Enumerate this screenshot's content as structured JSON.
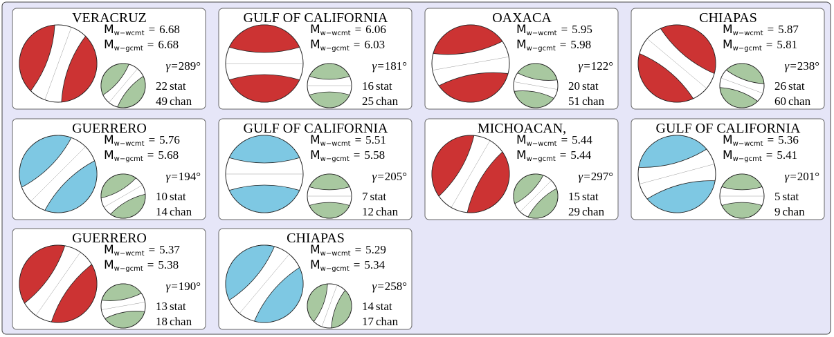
{
  "labels": {
    "m": "M",
    "wcmt": "w−wcmt",
    "gcmt": "w−gcmt",
    "eq": "=",
    "gamma": "γ=",
    "stat": "stat",
    "chan": "chan"
  },
  "panels": [
    {
      "title": "VERACRUZ",
      "wcmt": "6.68",
      "gcmt": "6.68",
      "gamma": "289°",
      "stat": "22",
      "chan": "49",
      "color": "#cc3333"
    },
    {
      "title": "GULF OF CALIFORNIA",
      "wcmt": "6.06",
      "gcmt": "6.03",
      "gamma": "181°",
      "stat": "16",
      "chan": "25",
      "color": "#cc3333"
    },
    {
      "title": "OAXACA",
      "wcmt": "5.95",
      "gcmt": "5.98",
      "gamma": "122°",
      "stat": "20",
      "chan": "51",
      "color": "#cc3333"
    },
    {
      "title": "CHIAPAS",
      "wcmt": "5.87",
      "gcmt": "5.81",
      "gamma": "238°",
      "stat": "26",
      "chan": "60",
      "color": "#cc3333"
    },
    {
      "title": "GUERRERO",
      "wcmt": "5.76",
      "gcmt": "5.68",
      "gamma": "194°",
      "stat": "10",
      "chan": "14",
      "color": "#7ec8e3"
    },
    {
      "title": "GULF OF CALIFORNIA",
      "wcmt": "5.51",
      "gcmt": "5.58",
      "gamma": "205°",
      "stat": "7",
      "chan": "12",
      "color": "#7ec8e3"
    },
    {
      "title": "MICHOACAN,",
      "wcmt": "5.44",
      "gcmt": "5.44",
      "gamma": "297°",
      "stat": "15",
      "chan": "29",
      "color": "#cc3333"
    },
    {
      "title": "GULF OF CALIFORNIA",
      "wcmt": "5.36",
      "gcmt": "5.41",
      "gamma": "201°",
      "stat": "5",
      "chan": "9",
      "color": "#7ec8e3"
    },
    {
      "title": "GUERRERO",
      "wcmt": "5.37",
      "gcmt": "5.38",
      "gamma": "190°",
      "stat": "13",
      "chan": "18",
      "color": "#cc3333"
    },
    {
      "title": "CHIAPAS",
      "wcmt": "5.29",
      "gcmt": "5.34",
      "gamma": "258°",
      "stat": "14",
      "chan": "17",
      "color": "#7ec8e3"
    }
  ]
}
